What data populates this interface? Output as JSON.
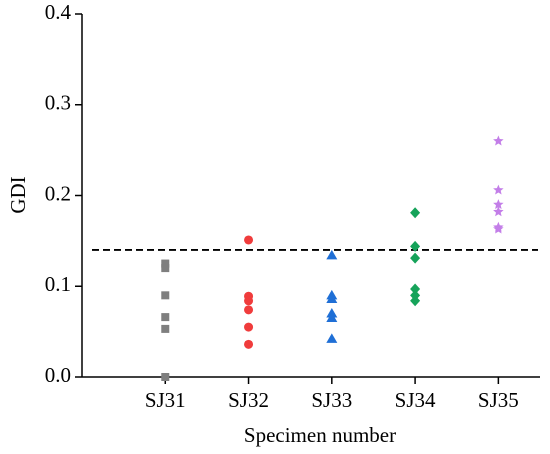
{
  "chart_data": {
    "type": "scatter",
    "x_label": "Specimen number",
    "y_label": "GDI",
    "categories": [
      "SJ31",
      "SJ32",
      "SJ33",
      "SJ34",
      "SJ35"
    ],
    "values": [
      [
        0.125,
        0.12,
        0.09,
        0.066,
        0.053,
        0
      ],
      [
        0.151,
        0.089,
        0.084,
        0.074,
        0.055,
        0.036
      ],
      [
        0.134,
        0.09,
        0.086,
        0.07,
        0.065,
        0.042
      ],
      [
        0.181,
        0.144,
        0.131,
        0.097,
        0.09,
        0.084
      ],
      [
        0.26,
        0.206,
        0.19,
        0.182,
        0.165,
        0.163
      ]
    ],
    "colors": [
      "#7f7f7f",
      "#f03c3c",
      "#1f6fd6",
      "#16a35a",
      "#c37ee8"
    ],
    "markers": [
      "square",
      "circle",
      "triangle",
      "diamond",
      "star"
    ],
    "reference_line": 0.14,
    "ylim": [
      0,
      0.4
    ],
    "yticks": [
      {
        "value": 0,
        "label": "0.0"
      },
      0.1,
      0.2,
      0.3,
      0.4
    ]
  }
}
